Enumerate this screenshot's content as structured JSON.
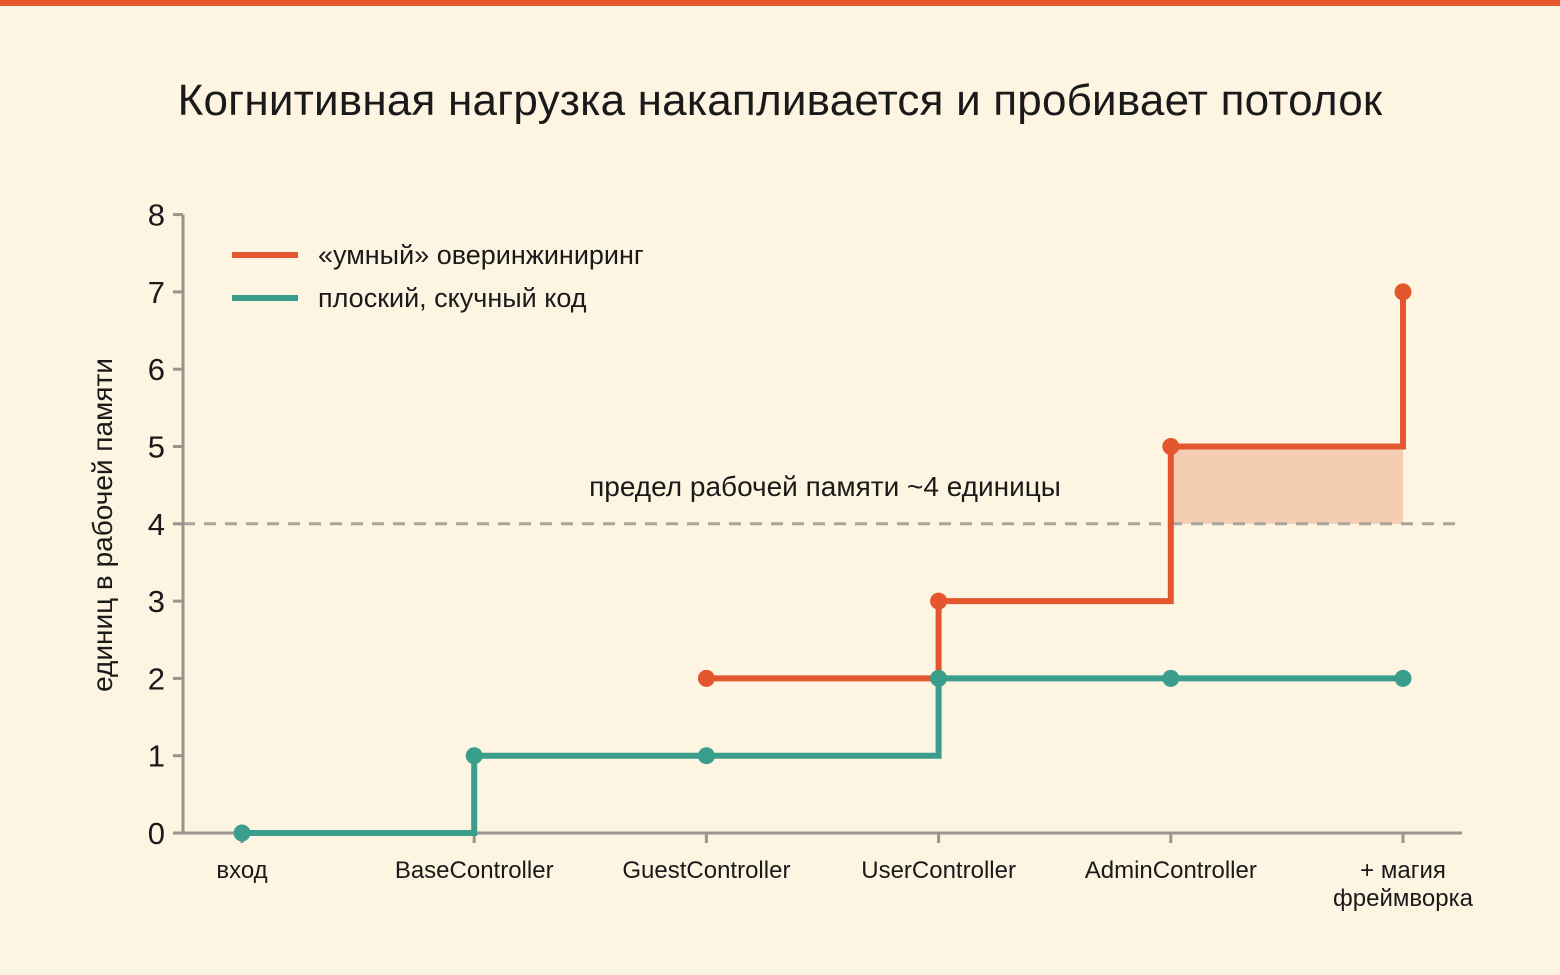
{
  "chart_data": {
    "type": "line",
    "step": "before",
    "title": "Когнитивная нагрузка накапливается и пробивает потолок",
    "ylabel": "единиц в рабочей памяти",
    "xlabel": "",
    "ylim": [
      0,
      8
    ],
    "yticks": [
      "0",
      "1",
      "2",
      "3",
      "4",
      "5",
      "6",
      "7",
      "8"
    ],
    "categories": [
      [
        "вход"
      ],
      [
        "BaseController"
      ],
      [
        "GuestController"
      ],
      [
        "UserController"
      ],
      [
        "AdminController"
      ],
      [
        "+ магия",
        "фреймворка"
      ]
    ],
    "series": [
      {
        "name": "«умный» оверинжиниринг",
        "color": "#E4572E",
        "points": [
          {
            "x": 2,
            "y": 2
          },
          {
            "x": 3,
            "y": 3
          },
          {
            "x": 4,
            "y": 5
          },
          {
            "x": 5,
            "y": 7
          }
        ]
      },
      {
        "name": "плоский, скучный код",
        "color": "#3A9E8C",
        "points": [
          {
            "x": 0,
            "y": 0
          },
          {
            "x": 1,
            "y": 1
          },
          {
            "x": 2,
            "y": 1
          },
          {
            "x": 3,
            "y": 2
          },
          {
            "x": 4,
            "y": 2
          },
          {
            "x": 5,
            "y": 2
          }
        ]
      }
    ],
    "threshold": {
      "value": 4,
      "label": "предел рабочей памяти ~4 единицы",
      "color": "#A9A59D"
    },
    "overflow_region": {
      "from": 4,
      "to": 5,
      "y_from": 4,
      "y_to": 5,
      "color": "#F5CDB3"
    },
    "grid": false,
    "legend": "top-left"
  }
}
